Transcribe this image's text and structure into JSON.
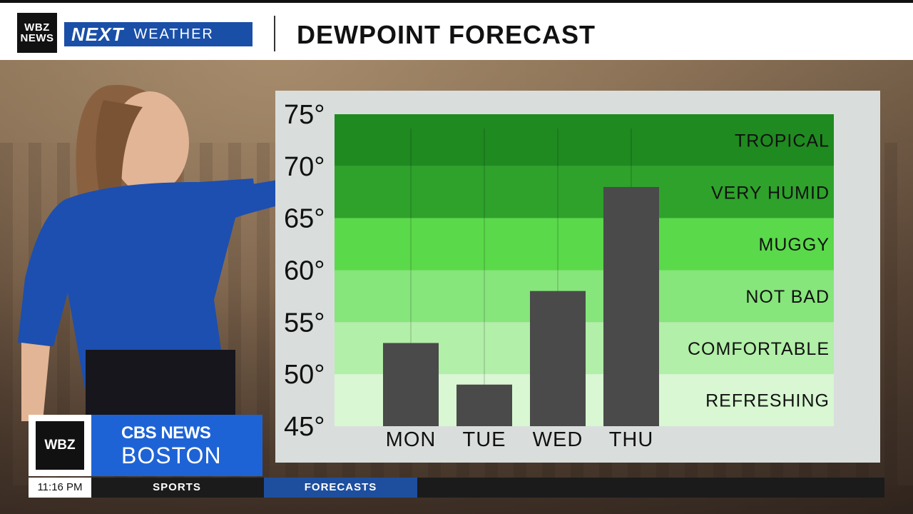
{
  "banner": {
    "station_line1": "WBZ",
    "station_line2": "NEWS",
    "next_label": "NEXT",
    "weather_label": "WEATHER",
    "title": "DEWPOINT FORECAST"
  },
  "colors": {
    "tropical": "#1f8a1f",
    "very_humid": "#2ea22b",
    "muggy": "#5ad94a",
    "not_bad": "#86e57b",
    "comfortable": "#b2efa8",
    "refreshing": "#d8f7d2",
    "bar": "#4a4a4a",
    "brand_blue": "#1e63d6"
  },
  "chart_data": {
    "type": "bar",
    "title": "DEWPOINT FORECAST",
    "categories": [
      "MON",
      "TUE",
      "WED",
      "THU"
    ],
    "values": [
      53,
      49,
      58,
      68
    ],
    "ylim": [
      45,
      75
    ],
    "yticks": [
      "45°",
      "50°",
      "55°",
      "60°",
      "65°",
      "70°",
      "75°"
    ],
    "ytick_values": [
      45,
      50,
      55,
      60,
      65,
      70,
      75
    ],
    "bands": [
      {
        "label": "TROPICAL",
        "from": 70,
        "to": 75,
        "color_key": "tropical"
      },
      {
        "label": "VERY HUMID",
        "from": 65,
        "to": 70,
        "color_key": "very_humid"
      },
      {
        "label": "MUGGY",
        "from": 60,
        "to": 65,
        "color_key": "muggy"
      },
      {
        "label": "NOT BAD",
        "from": 55,
        "to": 60,
        "color_key": "not_bad"
      },
      {
        "label": "COMFORTABLE",
        "from": 50,
        "to": 55,
        "color_key": "comfortable"
      },
      {
        "label": "REFRESHING",
        "from": 45,
        "to": 50,
        "color_key": "refreshing"
      }
    ]
  },
  "lower_third": {
    "station": "WBZ",
    "network": "CBS NEWS",
    "city": "BOSTON"
  },
  "ticker": {
    "time": "11:16 PM",
    "items": [
      "SPORTS",
      "FORECASTS"
    ]
  }
}
